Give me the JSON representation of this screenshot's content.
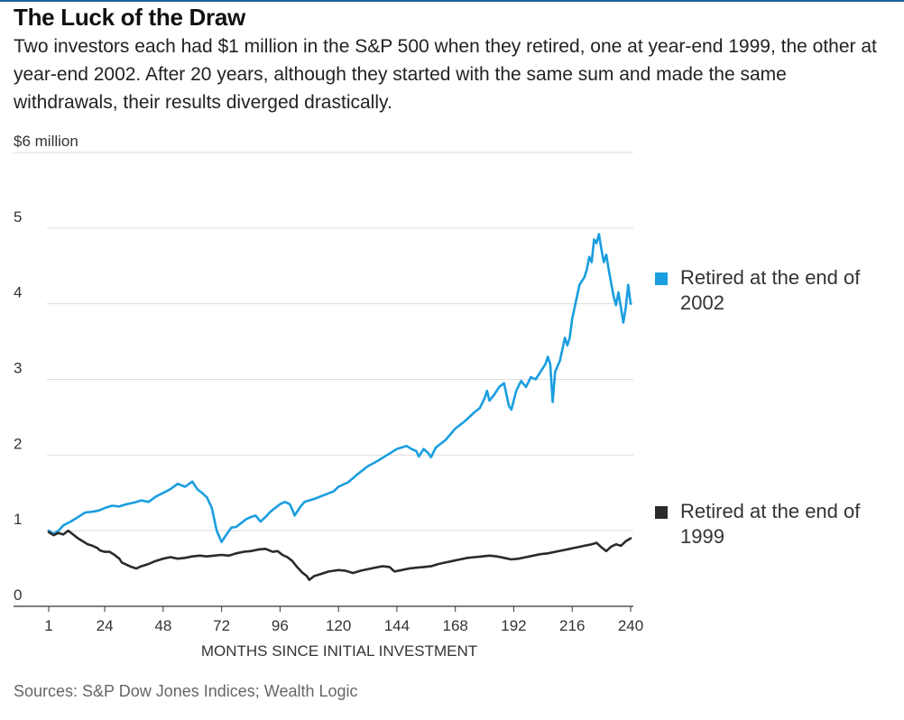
{
  "title": "The Luck of the Draw",
  "subtitle": "Two investors each had $1 million in the S&P 500 when they retired, one at year-end 1999, the other at year-end 2002. After 20 years, although they started with the same sum and made the same withdrawals, their results diverged drastically.",
  "source": "Sources: S&P Dow Jones Indices; Wealth Logic",
  "colors": {
    "series_2002": "#1a9ee0",
    "series_1999": "#2b2b2b",
    "grid": "#dddddd",
    "axis": "#333333"
  },
  "chart_data": {
    "type": "line",
    "title": "The Luck of the Draw",
    "xlabel": "MONTHS SINCE INITIAL INVESTMENT",
    "ylabel": "$6 million",
    "xlim": [
      1,
      240
    ],
    "ylim": [
      0,
      6
    ],
    "x_ticks": [
      1,
      24,
      48,
      72,
      96,
      120,
      144,
      168,
      192,
      216,
      240
    ],
    "y_ticks": [
      {
        "value": 0,
        "label": "0"
      },
      {
        "value": 1,
        "label": "1"
      },
      {
        "value": 2,
        "label": "2"
      },
      {
        "value": 3,
        "label": "3"
      },
      {
        "value": 4,
        "label": "4"
      },
      {
        "value": 5,
        "label": "5"
      },
      {
        "value": 6,
        "label": "$6 million"
      }
    ],
    "series": [
      {
        "name": "Retired at the end of 2002",
        "color": "#1a9ee0",
        "points": [
          [
            1,
            1.0
          ],
          [
            3,
            0.96
          ],
          [
            5,
            1.0
          ],
          [
            7,
            1.07
          ],
          [
            10,
            1.12
          ],
          [
            13,
            1.18
          ],
          [
            16,
            1.24
          ],
          [
            19,
            1.25
          ],
          [
            22,
            1.27
          ],
          [
            24,
            1.3
          ],
          [
            27,
            1.33
          ],
          [
            30,
            1.32
          ],
          [
            33,
            1.35
          ],
          [
            36,
            1.37
          ],
          [
            39,
            1.4
          ],
          [
            42,
            1.38
          ],
          [
            45,
            1.45
          ],
          [
            48,
            1.5
          ],
          [
            51,
            1.55
          ],
          [
            54,
            1.62
          ],
          [
            57,
            1.58
          ],
          [
            60,
            1.65
          ],
          [
            62,
            1.55
          ],
          [
            64,
            1.5
          ],
          [
            66,
            1.44
          ],
          [
            68,
            1.3
          ],
          [
            70,
            1.0
          ],
          [
            72,
            0.85
          ],
          [
            74,
            0.95
          ],
          [
            76,
            1.04
          ],
          [
            78,
            1.05
          ],
          [
            80,
            1.1
          ],
          [
            82,
            1.15
          ],
          [
            84,
            1.18
          ],
          [
            86,
            1.2
          ],
          [
            88,
            1.12
          ],
          [
            90,
            1.18
          ],
          [
            92,
            1.25
          ],
          [
            94,
            1.3
          ],
          [
            96,
            1.35
          ],
          [
            98,
            1.38
          ],
          [
            100,
            1.35
          ],
          [
            101,
            1.28
          ],
          [
            102,
            1.2
          ],
          [
            104,
            1.3
          ],
          [
            106,
            1.38
          ],
          [
            108,
            1.4
          ],
          [
            110,
            1.42
          ],
          [
            114,
            1.47
          ],
          [
            118,
            1.52
          ],
          [
            120,
            1.58
          ],
          [
            124,
            1.64
          ],
          [
            128,
            1.75
          ],
          [
            132,
            1.85
          ],
          [
            136,
            1.92
          ],
          [
            140,
            2.0
          ],
          [
            144,
            2.08
          ],
          [
            148,
            2.12
          ],
          [
            150,
            2.08
          ],
          [
            152,
            2.05
          ],
          [
            153,
            1.98
          ],
          [
            155,
            2.08
          ],
          [
            157,
            2.02
          ],
          [
            158,
            1.97
          ],
          [
            160,
            2.1
          ],
          [
            164,
            2.2
          ],
          [
            168,
            2.35
          ],
          [
            172,
            2.45
          ],
          [
            176,
            2.57
          ],
          [
            178,
            2.62
          ],
          [
            180,
            2.75
          ],
          [
            181,
            2.85
          ],
          [
            182,
            2.72
          ],
          [
            184,
            2.8
          ],
          [
            186,
            2.9
          ],
          [
            188,
            2.95
          ],
          [
            189,
            2.8
          ],
          [
            190,
            2.65
          ],
          [
            191,
            2.6
          ],
          [
            193,
            2.85
          ],
          [
            195,
            2.98
          ],
          [
            197,
            2.9
          ],
          [
            199,
            3.03
          ],
          [
            201,
            3.0
          ],
          [
            203,
            3.1
          ],
          [
            205,
            3.2
          ],
          [
            206,
            3.3
          ],
          [
            207,
            3.2
          ],
          [
            208,
            2.7
          ],
          [
            209,
            3.1
          ],
          [
            211,
            3.25
          ],
          [
            213,
            3.55
          ],
          [
            214,
            3.45
          ],
          [
            215,
            3.55
          ],
          [
            216,
            3.8
          ],
          [
            217,
            3.95
          ],
          [
            219,
            4.25
          ],
          [
            221,
            4.35
          ],
          [
            222,
            4.45
          ],
          [
            223,
            4.62
          ],
          [
            224,
            4.55
          ],
          [
            225,
            4.85
          ],
          [
            226,
            4.8
          ],
          [
            227,
            4.92
          ],
          [
            228,
            4.72
          ],
          [
            229,
            4.55
          ],
          [
            230,
            4.65
          ],
          [
            231,
            4.45
          ],
          [
            233,
            4.1
          ],
          [
            234,
            3.98
          ],
          [
            235,
            4.15
          ],
          [
            237,
            3.75
          ],
          [
            238,
            3.95
          ],
          [
            239,
            4.25
          ],
          [
            240,
            4.0
          ]
        ]
      },
      {
        "name": "Retired at the end of 1999",
        "color": "#2b2b2b",
        "points": [
          [
            1,
            0.98
          ],
          [
            3,
            0.94
          ],
          [
            5,
            0.97
          ],
          [
            7,
            0.95
          ],
          [
            9,
            1.0
          ],
          [
            11,
            0.95
          ],
          [
            13,
            0.9
          ],
          [
            15,
            0.86
          ],
          [
            17,
            0.82
          ],
          [
            19,
            0.8
          ],
          [
            21,
            0.77
          ],
          [
            22,
            0.74
          ],
          [
            24,
            0.72
          ],
          [
            26,
            0.72
          ],
          [
            28,
            0.68
          ],
          [
            30,
            0.63
          ],
          [
            31,
            0.58
          ],
          [
            33,
            0.55
          ],
          [
            35,
            0.52
          ],
          [
            37,
            0.5
          ],
          [
            39,
            0.53
          ],
          [
            42,
            0.56
          ],
          [
            45,
            0.6
          ],
          [
            48,
            0.63
          ],
          [
            51,
            0.65
          ],
          [
            54,
            0.63
          ],
          [
            57,
            0.64
          ],
          [
            60,
            0.66
          ],
          [
            63,
            0.67
          ],
          [
            66,
            0.66
          ],
          [
            69,
            0.67
          ],
          [
            72,
            0.68
          ],
          [
            75,
            0.67
          ],
          [
            78,
            0.7
          ],
          [
            81,
            0.72
          ],
          [
            84,
            0.73
          ],
          [
            87,
            0.75
          ],
          [
            90,
            0.76
          ],
          [
            93,
            0.72
          ],
          [
            95,
            0.73
          ],
          [
            97,
            0.68
          ],
          [
            99,
            0.65
          ],
          [
            101,
            0.6
          ],
          [
            103,
            0.52
          ],
          [
            105,
            0.45
          ],
          [
            107,
            0.4
          ],
          [
            108,
            0.35
          ],
          [
            110,
            0.4
          ],
          [
            113,
            0.43
          ],
          [
            116,
            0.46
          ],
          [
            120,
            0.48
          ],
          [
            123,
            0.47
          ],
          [
            126,
            0.44
          ],
          [
            129,
            0.47
          ],
          [
            132,
            0.49
          ],
          [
            135,
            0.51
          ],
          [
            138,
            0.53
          ],
          [
            141,
            0.52
          ],
          [
            143,
            0.46
          ],
          [
            146,
            0.48
          ],
          [
            149,
            0.5
          ],
          [
            152,
            0.51
          ],
          [
            155,
            0.52
          ],
          [
            158,
            0.53
          ],
          [
            161,
            0.56
          ],
          [
            164,
            0.58
          ],
          [
            167,
            0.6
          ],
          [
            170,
            0.62
          ],
          [
            173,
            0.64
          ],
          [
            176,
            0.65
          ],
          [
            179,
            0.66
          ],
          [
            182,
            0.67
          ],
          [
            185,
            0.66
          ],
          [
            188,
            0.64
          ],
          [
            191,
            0.62
          ],
          [
            194,
            0.63
          ],
          [
            197,
            0.65
          ],
          [
            200,
            0.67
          ],
          [
            203,
            0.69
          ],
          [
            206,
            0.7
          ],
          [
            209,
            0.72
          ],
          [
            212,
            0.74
          ],
          [
            215,
            0.76
          ],
          [
            218,
            0.78
          ],
          [
            221,
            0.8
          ],
          [
            224,
            0.82
          ],
          [
            226,
            0.84
          ],
          [
            228,
            0.78
          ],
          [
            230,
            0.73
          ],
          [
            232,
            0.79
          ],
          [
            234,
            0.82
          ],
          [
            236,
            0.8
          ],
          [
            238,
            0.86
          ],
          [
            240,
            0.9
          ]
        ]
      }
    ]
  }
}
